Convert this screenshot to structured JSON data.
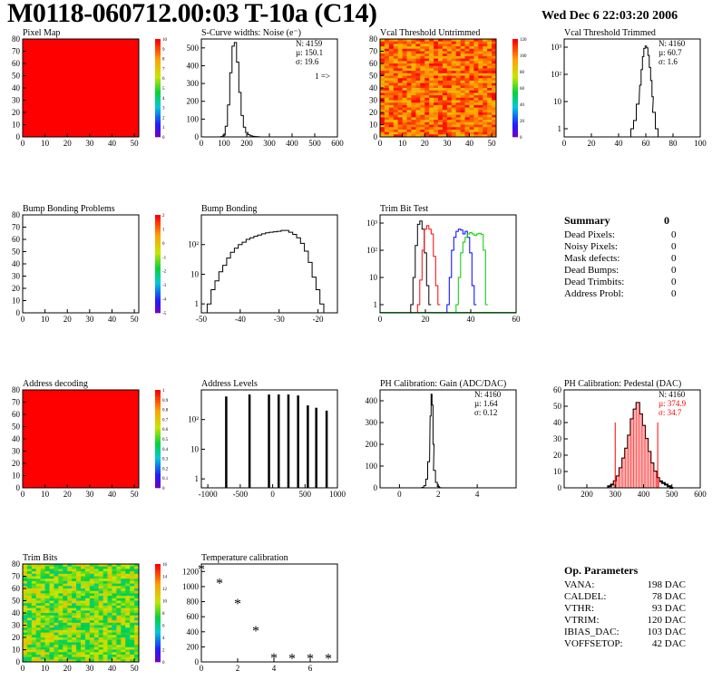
{
  "title": "M0118-060712.00:03 T-10a (C14)",
  "date": "Wed Dec  6 22:03:20 2006",
  "colors": {
    "red": "#ff0000",
    "green": "#00cc00",
    "blue": "#0000ff",
    "black": "#000000",
    "pink": "#ffb0b0"
  },
  "chart_data": [
    {
      "id": "pixel-map",
      "type": "heatmap",
      "title": "Pixel Map",
      "xlim": [
        0,
        52
      ],
      "ylim": [
        0,
        80
      ],
      "xticks": [
        0,
        10,
        20,
        30,
        40,
        50
      ],
      "yticks": [
        0,
        10,
        20,
        30,
        40,
        50,
        60,
        70,
        80
      ],
      "zticks": [
        "0",
        "1",
        "2",
        "3",
        "4",
        "5",
        "6",
        "7",
        "8",
        "9",
        "10"
      ],
      "fill": "uniform-max"
    },
    {
      "id": "scurve",
      "type": "bar",
      "title": "S-Curve widths: Noise (e⁻)",
      "xlim": [
        0,
        600
      ],
      "ylim": [
        0,
        550
      ],
      "xticks": [
        0,
        100,
        200,
        300,
        400,
        500,
        600
      ],
      "yticks": [
        0,
        100,
        200,
        300,
        400,
        500
      ],
      "stats": [
        "N: 4159",
        "µ: 150.1",
        "σ: 19.6"
      ],
      "note": "1 =>",
      "x": [
        90,
        100,
        110,
        120,
        130,
        140,
        150,
        160,
        170,
        180,
        190,
        200,
        210,
        220,
        230,
        240,
        250,
        260
      ],
      "values": [
        2,
        10,
        60,
        180,
        360,
        510,
        530,
        420,
        250,
        120,
        55,
        25,
        12,
        6,
        3,
        2,
        1,
        0
      ]
    },
    {
      "id": "vcal-untrimmed",
      "type": "heatmap",
      "title": "Vcal Threshold Untrimmed",
      "xlim": [
        0,
        52
      ],
      "ylim": [
        0,
        80
      ],
      "xticks": [
        0,
        10,
        20,
        30,
        40,
        50
      ],
      "yticks": [
        0,
        10,
        20,
        30,
        40,
        50,
        60,
        70,
        80
      ],
      "zticks": [
        "0",
        "20",
        "40",
        "60",
        "80",
        "100",
        "120"
      ],
      "fill": "noisy-warm"
    },
    {
      "id": "vcal-trimmed",
      "type": "bar",
      "title": "Vcal Threshold Trimmed",
      "xlim": [
        0,
        100
      ],
      "ylog": true,
      "ylim": [
        0.5,
        2000
      ],
      "xticks": [
        0,
        20,
        40,
        60,
        80,
        100
      ],
      "yticks": [
        1,
        10,
        100,
        1000
      ],
      "ytick_labels": [
        "1",
        "10",
        "10²",
        "10³"
      ],
      "stats": [
        "N: 4160",
        "µ: 60.7",
        "σ:  1.6"
      ],
      "x": [
        50,
        52,
        54,
        56,
        57,
        58,
        59,
        60,
        61,
        62,
        63,
        64,
        65,
        66,
        68,
        70
      ],
      "values": [
        1,
        2,
        8,
        40,
        150,
        450,
        900,
        1100,
        950,
        500,
        180,
        60,
        15,
        4,
        1,
        0
      ]
    },
    {
      "id": "bump-problems",
      "type": "heatmap",
      "title": "Bump Bonding Problems",
      "xlim": [
        0,
        52
      ],
      "ylim": [
        0,
        80
      ],
      "xticks": [
        0,
        10,
        20,
        30,
        40,
        50
      ],
      "yticks": [
        0,
        10,
        20,
        30,
        40,
        50,
        60,
        70,
        80
      ],
      "zticks": [
        "-5",
        "-4",
        "-3",
        "-2",
        "-1",
        "0",
        "1",
        "2"
      ],
      "fill": "empty"
    },
    {
      "id": "bump-bonding",
      "type": "bar",
      "title": "Bump Bonding",
      "xlim": [
        -50,
        -15
      ],
      "ylog": true,
      "ylim": [
        0.5,
        1000
      ],
      "xticks": [
        -50,
        -40,
        -30,
        -20
      ],
      "yticks": [
        1,
        10,
        100
      ],
      "ytick_labels": [
        "1",
        "10",
        "10²"
      ],
      "x": [
        -48,
        -47,
        -46,
        -45,
        -44,
        -43,
        -42,
        -41,
        -40,
        -39,
        -38,
        -37,
        -36,
        -35,
        -34,
        -33,
        -32,
        -31,
        -30,
        -29,
        -28,
        -27,
        -26,
        -25,
        -24,
        -23,
        -22,
        -21,
        -20,
        -19,
        -18
      ],
      "values": [
        1,
        3,
        6,
        12,
        20,
        35,
        55,
        75,
        100,
        120,
        150,
        170,
        190,
        210,
        230,
        250,
        260,
        270,
        280,
        300,
        300,
        260,
        220,
        170,
        110,
        60,
        25,
        8,
        3,
        1,
        0
      ]
    },
    {
      "id": "trim-bit-test",
      "type": "line",
      "title": "Trim Bit Test",
      "xlim": [
        0,
        60
      ],
      "ylog": true,
      "ylim": [
        0.5,
        2000
      ],
      "xticks": [
        0,
        20,
        40,
        60
      ],
      "yticks": [
        1,
        10,
        100,
        1000
      ],
      "ytick_labels": [
        "1",
        "10",
        "10²",
        "10³"
      ],
      "series": [
        {
          "color": "black",
          "x": [
            14,
            15,
            16,
            17,
            18,
            19,
            20,
            21,
            22
          ],
          "values": [
            1,
            10,
            150,
            900,
            1200,
            600,
            80,
            5,
            1
          ]
        },
        {
          "color": "red",
          "x": [
            17,
            18,
            19,
            20,
            21,
            22,
            23,
            24,
            25,
            26
          ],
          "values": [
            1,
            8,
            100,
            600,
            800,
            600,
            400,
            60,
            5,
            1
          ]
        },
        {
          "color": "blue",
          "x": [
            30,
            31,
            32,
            33,
            34,
            35,
            36,
            37,
            38,
            39,
            40,
            41,
            42
          ],
          "values": [
            1,
            10,
            100,
            300,
            500,
            600,
            550,
            400,
            500,
            300,
            80,
            5,
            1
          ]
        },
        {
          "color": "green",
          "x": [
            34,
            35,
            36,
            37,
            38,
            39,
            40,
            41,
            42,
            43,
            44,
            45,
            46,
            47
          ],
          "values": [
            1,
            10,
            80,
            200,
            300,
            400,
            450,
            400,
            350,
            400,
            420,
            380,
            100,
            1
          ]
        }
      ]
    },
    {
      "id": "address-decoding",
      "type": "heatmap",
      "title": "Address decoding",
      "xlim": [
        0,
        52
      ],
      "ylim": [
        0,
        80
      ],
      "xticks": [
        0,
        10,
        20,
        30,
        40,
        50
      ],
      "yticks": [
        0,
        10,
        20,
        30,
        40,
        50,
        60,
        70,
        80
      ],
      "zticks": [
        "0",
        "0.1",
        "0.2",
        "0.3",
        "0.4",
        "0.5",
        "0.6",
        "0.7",
        "0.8",
        "0.9",
        "1"
      ],
      "fill": "uniform-max"
    },
    {
      "id": "address-levels",
      "type": "bar",
      "title": "Address Levels",
      "xlim": [
        -1100,
        1000
      ],
      "ylog": true,
      "ylim": [
        0.5,
        1000
      ],
      "xticks": [
        -1000,
        -500,
        0,
        500,
        1000
      ],
      "yticks": [
        1,
        10,
        100
      ],
      "ytick_labels": [
        "1",
        "10",
        "10²"
      ],
      "x": [
        -720,
        -360,
        -60,
        90,
        240,
        390,
        540,
        670,
        830
      ],
      "values": [
        600,
        700,
        700,
        700,
        700,
        650,
        300,
        250,
        200
      ]
    },
    {
      "id": "ph-gain",
      "type": "bar",
      "title": "PH Calibration: Gain (ADC/DAC)",
      "xlim": [
        -1,
        6
      ],
      "ylim": [
        0,
        450
      ],
      "xticks": [
        0,
        2,
        4
      ],
      "yticks": [
        0,
        100,
        200,
        300,
        400
      ],
      "stats": [
        "N: 4160",
        "µ: 1.64",
        "σ: 0.12"
      ],
      "x": [
        1.2,
        1.3,
        1.4,
        1.5,
        1.6,
        1.65,
        1.7,
        1.75,
        1.8,
        1.9,
        2.0,
        2.1
      ],
      "values": [
        2,
        10,
        40,
        120,
        330,
        430,
        380,
        200,
        80,
        25,
        6,
        1
      ]
    },
    {
      "id": "ph-pedestal",
      "type": "bar",
      "title": "PH Calibration: Pedestal (DAC)",
      "xlim": [
        120,
        600
      ],
      "ylim": [
        0,
        60
      ],
      "xticks": [
        200,
        300,
        400,
        500,
        600
      ],
      "yticks": [
        0,
        10,
        20,
        30,
        40,
        50,
        60
      ],
      "stats": [
        "N: 4160",
        "µ: 374.9",
        "σ: 34.7"
      ],
      "x": [
        280,
        290,
        300,
        310,
        320,
        330,
        340,
        350,
        360,
        370,
        380,
        390,
        400,
        410,
        420,
        430,
        440,
        450,
        460,
        470,
        480,
        490,
        500
      ],
      "values": [
        1,
        2,
        4,
        7,
        12,
        18,
        24,
        32,
        42,
        48,
        52,
        45,
        38,
        30,
        22,
        15,
        10,
        6,
        4,
        3,
        2,
        1,
        0
      ]
    },
    {
      "id": "trim-bits",
      "type": "heatmap",
      "title": "Trim Bits",
      "xlim": [
        0,
        52
      ],
      "ylim": [
        0,
        80
      ],
      "xticks": [
        0,
        10,
        20,
        30,
        40,
        50
      ],
      "yticks": [
        0,
        10,
        20,
        30,
        40,
        50,
        60,
        70,
        80
      ],
      "zticks": [
        "0",
        "2",
        "4",
        "6",
        "8",
        "10",
        "12",
        "14",
        "16"
      ],
      "fill": "noisy-cool"
    },
    {
      "id": "temperature",
      "type": "scatter",
      "title": "Temperature calibration",
      "xlim": [
        0,
        7.5
      ],
      "ylim": [
        0,
        1300
      ],
      "xticks": [
        0,
        2,
        4,
        6
      ],
      "yticks": [
        0,
        200,
        400,
        600,
        800,
        1000,
        1200
      ],
      "x": [
        0,
        1,
        2,
        3,
        4,
        5,
        6,
        7
      ],
      "values": [
        1230,
        1040,
        770,
        410,
        50,
        40,
        40,
        40
      ]
    }
  ],
  "summary": {
    "title": "Summary",
    "total": "0",
    "rows": [
      {
        "label": "Dead Pixels:",
        "value": "0"
      },
      {
        "label": "Noisy Pixels:",
        "value": "0"
      },
      {
        "label": "Mask defects:",
        "value": "0"
      },
      {
        "label": "Dead Bumps:",
        "value": "0"
      },
      {
        "label": "Dead Trimbits:",
        "value": "0"
      },
      {
        "label": "Address Probl:",
        "value": "0"
      }
    ]
  },
  "op_params": {
    "title": "Op. Parameters",
    "rows": [
      {
        "label": "VANA:",
        "value": "198 DAC"
      },
      {
        "label": "CALDEL:",
        "value": "78 DAC"
      },
      {
        "label": "VTHR:",
        "value": "93 DAC"
      },
      {
        "label": "VTRIM:",
        "value": "120 DAC"
      },
      {
        "label": "IBIAS_DAC:",
        "value": "103 DAC"
      },
      {
        "label": "VOFFSETOP:",
        "value": "42 DAC"
      }
    ]
  }
}
